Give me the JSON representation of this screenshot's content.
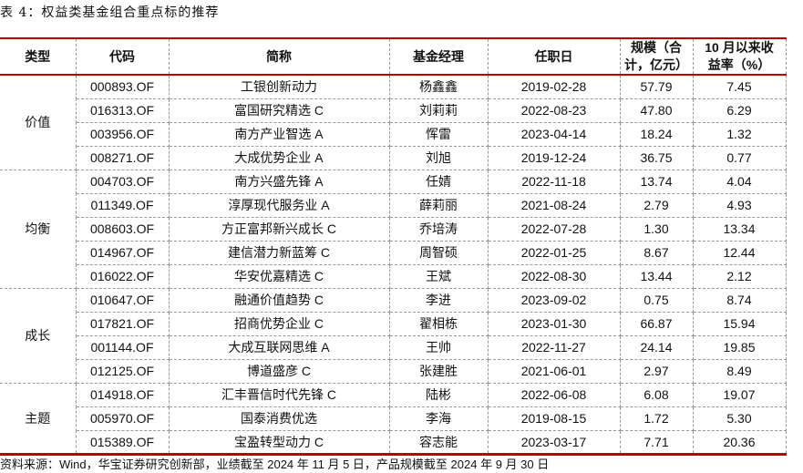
{
  "title": "表 4：权益类基金组合重点标的推荐",
  "headers": {
    "type": "类型",
    "code": "代码",
    "name": "简称",
    "manager": "基金经理",
    "start": "任职日",
    "size_line1": "规模（合",
    "size_line2": "计，亿元）",
    "ret_line1": "10 月以来收",
    "ret_line2": "益率（%）"
  },
  "groups": [
    {
      "category": "价值",
      "rows": [
        [
          "000893.OF",
          "工银创新动力",
          "杨鑫鑫",
          "2019-02-28",
          "57.79",
          "7.45"
        ],
        [
          "016313.OF",
          "富国研究精选 C",
          "刘莉莉",
          "2022-08-23",
          "47.80",
          "6.29"
        ],
        [
          "003956.OF",
          "南方产业智选 A",
          "恽雷",
          "2023-04-14",
          "18.24",
          "1.32"
        ],
        [
          "008271.OF",
          "大成优势企业 A",
          "刘旭",
          "2019-12-24",
          "36.75",
          "0.77"
        ]
      ]
    },
    {
      "category": "均衡",
      "rows": [
        [
          "004703.OF",
          "南方兴盛先锋 A",
          "任婧",
          "2022-11-18",
          "13.74",
          "4.04"
        ],
        [
          "011349.OF",
          "淳厚现代服务业 A",
          "薛莉丽",
          "2021-08-24",
          "2.79",
          "4.93"
        ],
        [
          "008603.OF",
          "方正富邦新兴成长 C",
          "乔培涛",
          "2022-07-28",
          "1.30",
          "13.34"
        ],
        [
          "014967.OF",
          "建信潜力新蓝筹 C",
          "周智硕",
          "2022-01-25",
          "8.67",
          "12.44"
        ],
        [
          "016022.OF",
          "华安优嘉精选 C",
          "王斌",
          "2022-08-30",
          "13.44",
          "2.12"
        ]
      ]
    },
    {
      "category": "成长",
      "rows": [
        [
          "010647.OF",
          "融通价值趋势 C",
          "李进",
          "2023-09-02",
          "0.75",
          "8.74"
        ],
        [
          "017821.OF",
          "招商优势企业 C",
          "翟相栋",
          "2023-01-30",
          "66.87",
          "15.94"
        ],
        [
          "001144.OF",
          "大成互联网思维 A",
          "王帅",
          "2022-11-27",
          "24.14",
          "19.85"
        ],
        [
          "012125.OF",
          "博道盛彦 C",
          "张建胜",
          "2021-06-01",
          "2.97",
          "8.49"
        ]
      ]
    },
    {
      "category": "主题",
      "rows": [
        [
          "014918.OF",
          "汇丰晋信时代先锋 C",
          "陆彬",
          "2022-06-08",
          "6.08",
          "19.07"
        ],
        [
          "005970.OF",
          "国泰消费优选",
          "李海",
          "2019-08-15",
          "1.72",
          "5.30"
        ],
        [
          "015389.OF",
          "宝盈转型动力 C",
          "容志能",
          "2023-03-17",
          "7.71",
          "20.36"
        ]
      ]
    }
  ],
  "source": "资料来源：Wind，华宝证券研究创新部，业绩截至 2024 年 11 月 5 日，产品规模截至 2024 年 9 月 30 日",
  "colors": {
    "accent_rule": "#c00000",
    "grid": "#999999"
  }
}
